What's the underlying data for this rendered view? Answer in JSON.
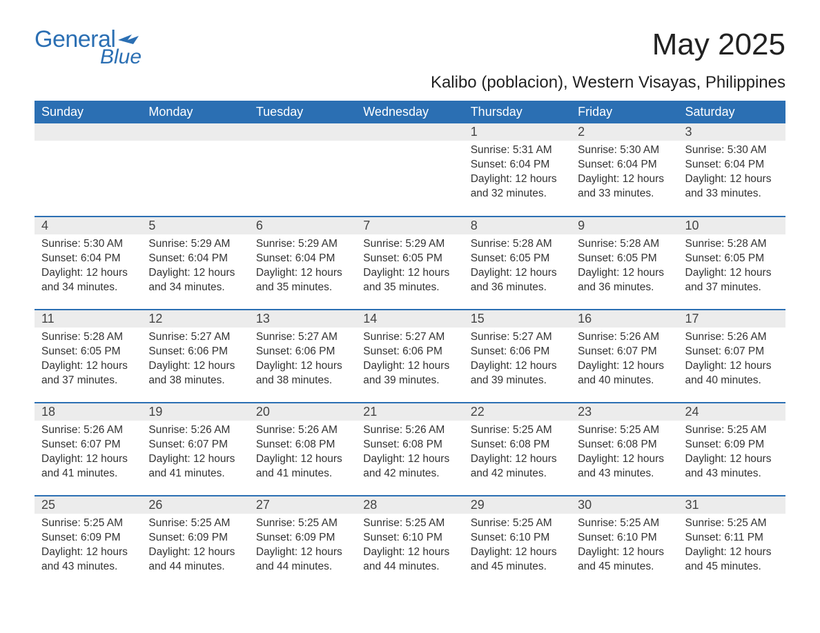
{
  "logo": {
    "text1": "General",
    "text2": "Blue",
    "color": "#2b6fb3"
  },
  "title": "May 2025",
  "location": "Kalibo (poblacion), Western Visayas, Philippines",
  "colors": {
    "header_bg": "#2b6fb3",
    "header_text": "#ffffff",
    "daynum_bg": "#ececec",
    "row_border": "#2b6fb3",
    "body_text": "#333333",
    "background": "#ffffff"
  },
  "week_header": [
    "Sunday",
    "Monday",
    "Tuesday",
    "Wednesday",
    "Thursday",
    "Friday",
    "Saturday"
  ],
  "labels": {
    "sunrise": "Sunrise:",
    "sunset": "Sunset:",
    "daylight": "Daylight:"
  },
  "weeks": [
    [
      null,
      null,
      null,
      null,
      {
        "n": "1",
        "sunrise": "5:31 AM",
        "sunset": "6:04 PM",
        "daylight": "12 hours and 32 minutes."
      },
      {
        "n": "2",
        "sunrise": "5:30 AM",
        "sunset": "6:04 PM",
        "daylight": "12 hours and 33 minutes."
      },
      {
        "n": "3",
        "sunrise": "5:30 AM",
        "sunset": "6:04 PM",
        "daylight": "12 hours and 33 minutes."
      }
    ],
    [
      {
        "n": "4",
        "sunrise": "5:30 AM",
        "sunset": "6:04 PM",
        "daylight": "12 hours and 34 minutes."
      },
      {
        "n": "5",
        "sunrise": "5:29 AM",
        "sunset": "6:04 PM",
        "daylight": "12 hours and 34 minutes."
      },
      {
        "n": "6",
        "sunrise": "5:29 AM",
        "sunset": "6:04 PM",
        "daylight": "12 hours and 35 minutes."
      },
      {
        "n": "7",
        "sunrise": "5:29 AM",
        "sunset": "6:05 PM",
        "daylight": "12 hours and 35 minutes."
      },
      {
        "n": "8",
        "sunrise": "5:28 AM",
        "sunset": "6:05 PM",
        "daylight": "12 hours and 36 minutes."
      },
      {
        "n": "9",
        "sunrise": "5:28 AM",
        "sunset": "6:05 PM",
        "daylight": "12 hours and 36 minutes."
      },
      {
        "n": "10",
        "sunrise": "5:28 AM",
        "sunset": "6:05 PM",
        "daylight": "12 hours and 37 minutes."
      }
    ],
    [
      {
        "n": "11",
        "sunrise": "5:28 AM",
        "sunset": "6:05 PM",
        "daylight": "12 hours and 37 minutes."
      },
      {
        "n": "12",
        "sunrise": "5:27 AM",
        "sunset": "6:06 PM",
        "daylight": "12 hours and 38 minutes."
      },
      {
        "n": "13",
        "sunrise": "5:27 AM",
        "sunset": "6:06 PM",
        "daylight": "12 hours and 38 minutes."
      },
      {
        "n": "14",
        "sunrise": "5:27 AM",
        "sunset": "6:06 PM",
        "daylight": "12 hours and 39 minutes."
      },
      {
        "n": "15",
        "sunrise": "5:27 AM",
        "sunset": "6:06 PM",
        "daylight": "12 hours and 39 minutes."
      },
      {
        "n": "16",
        "sunrise": "5:26 AM",
        "sunset": "6:07 PM",
        "daylight": "12 hours and 40 minutes."
      },
      {
        "n": "17",
        "sunrise": "5:26 AM",
        "sunset": "6:07 PM",
        "daylight": "12 hours and 40 minutes."
      }
    ],
    [
      {
        "n": "18",
        "sunrise": "5:26 AM",
        "sunset": "6:07 PM",
        "daylight": "12 hours and 41 minutes."
      },
      {
        "n": "19",
        "sunrise": "5:26 AM",
        "sunset": "6:07 PM",
        "daylight": "12 hours and 41 minutes."
      },
      {
        "n": "20",
        "sunrise": "5:26 AM",
        "sunset": "6:08 PM",
        "daylight": "12 hours and 41 minutes."
      },
      {
        "n": "21",
        "sunrise": "5:26 AM",
        "sunset": "6:08 PM",
        "daylight": "12 hours and 42 minutes."
      },
      {
        "n": "22",
        "sunrise": "5:25 AM",
        "sunset": "6:08 PM",
        "daylight": "12 hours and 42 minutes."
      },
      {
        "n": "23",
        "sunrise": "5:25 AM",
        "sunset": "6:08 PM",
        "daylight": "12 hours and 43 minutes."
      },
      {
        "n": "24",
        "sunrise": "5:25 AM",
        "sunset": "6:09 PM",
        "daylight": "12 hours and 43 minutes."
      }
    ],
    [
      {
        "n": "25",
        "sunrise": "5:25 AM",
        "sunset": "6:09 PM",
        "daylight": "12 hours and 43 minutes."
      },
      {
        "n": "26",
        "sunrise": "5:25 AM",
        "sunset": "6:09 PM",
        "daylight": "12 hours and 44 minutes."
      },
      {
        "n": "27",
        "sunrise": "5:25 AM",
        "sunset": "6:09 PM",
        "daylight": "12 hours and 44 minutes."
      },
      {
        "n": "28",
        "sunrise": "5:25 AM",
        "sunset": "6:10 PM",
        "daylight": "12 hours and 44 minutes."
      },
      {
        "n": "29",
        "sunrise": "5:25 AM",
        "sunset": "6:10 PM",
        "daylight": "12 hours and 45 minutes."
      },
      {
        "n": "30",
        "sunrise": "5:25 AM",
        "sunset": "6:10 PM",
        "daylight": "12 hours and 45 minutes."
      },
      {
        "n": "31",
        "sunrise": "5:25 AM",
        "sunset": "6:11 PM",
        "daylight": "12 hours and 45 minutes."
      }
    ]
  ]
}
